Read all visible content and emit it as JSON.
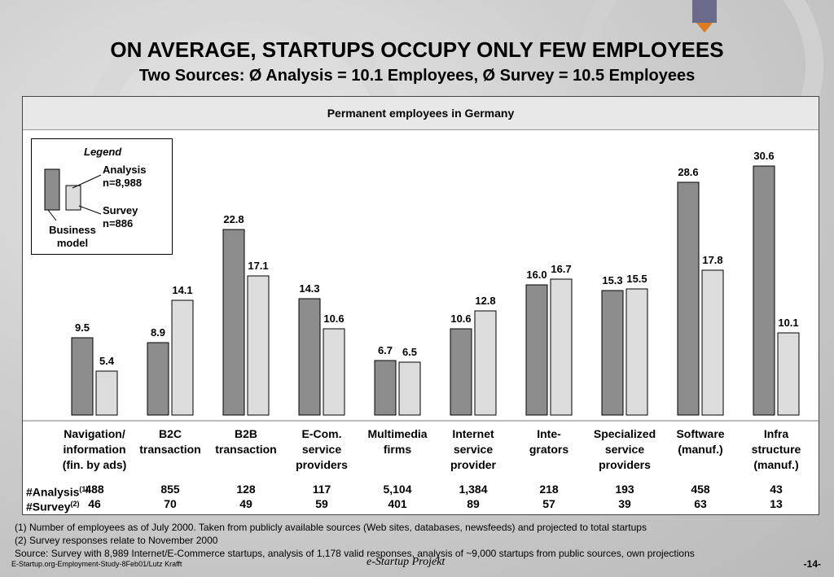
{
  "title": "ON AVERAGE, STARTUPS OCCUPY ONLY FEW EMPLOYEES",
  "subtitle": "Two Sources: Ø Analysis = 10.1 Employees, Ø Survey = 10.5 Employees",
  "panel_header": "Permanent employees in Germany",
  "legend": {
    "title": "Legend",
    "analysis_line1": "Analysis",
    "analysis_line2": "n=8,988",
    "survey_line1": "Survey",
    "survey_line2": "n=886",
    "bm_line1": "Business",
    "bm_line2": "model"
  },
  "colors": {
    "analysis": "#8c8c8c",
    "survey": "#dcdcdc"
  },
  "chart_data": {
    "type": "bar",
    "categories": [
      [
        "Navigation/",
        "information",
        "(fin. by ads)"
      ],
      [
        "B2C",
        "transaction"
      ],
      [
        "B2B",
        "transaction"
      ],
      [
        "E-Com.",
        "service",
        "providers"
      ],
      [
        "Multimedia",
        "firms"
      ],
      [
        "Internet",
        "service",
        "provider"
      ],
      [
        "Inte-",
        "grators"
      ],
      [
        "Specialized",
        "service",
        "providers"
      ],
      [
        "Software",
        "(manuf.)"
      ],
      [
        "Infra",
        "structure",
        "(manuf.)"
      ]
    ],
    "series": [
      {
        "name": "Analysis",
        "values": [
          9.5,
          8.9,
          22.8,
          14.3,
          6.7,
          10.6,
          16.0,
          15.3,
          28.6,
          30.6
        ]
      },
      {
        "name": "Survey",
        "values": [
          5.4,
          14.1,
          17.1,
          10.6,
          6.5,
          12.8,
          16.7,
          15.5,
          17.8,
          10.1
        ]
      }
    ],
    "value_labels": [
      [
        "9.5",
        "8.9",
        "22.8",
        "14.3",
        "6.7",
        "10.6",
        "16.0",
        "15.3",
        "28.6",
        "30.6"
      ],
      [
        "5.4",
        "14.1",
        "17.1",
        "10.6",
        "6.5",
        "12.8",
        "16.7",
        "15.5",
        "17.8",
        "10.1"
      ]
    ],
    "ylim": [
      0,
      32
    ]
  },
  "counts": {
    "analysis_label": "#Analysis",
    "analysis_sup": "(1)",
    "survey_label": "#Survey",
    "survey_sup": "(2)",
    "analysis": [
      "488",
      "855",
      "128",
      "117",
      "5,104",
      "1,384",
      "218",
      "193",
      "458",
      "43"
    ],
    "survey": [
      "46",
      "70",
      "49",
      "59",
      "401",
      "89",
      "57",
      "39",
      "63",
      "13"
    ]
  },
  "footnotes": [
    "(1) Number of employees as of July 2000. Taken from publicly available sources (Web sites, databases, newsfeeds) and projected to total startups",
    "(2) Survey responses relate to November 2000",
    "Source: Survey with 8,989 Internet/E-Commerce startups, analysis of 1,178 valid responses, analysis of ~9,000 startups from public sources, own projections"
  ],
  "footer": {
    "left": "E-Startup.org-Employment-Study-8Feb01/Lutz Krafft",
    "brand": "e-Startup Projekt",
    "page": "-14-"
  }
}
